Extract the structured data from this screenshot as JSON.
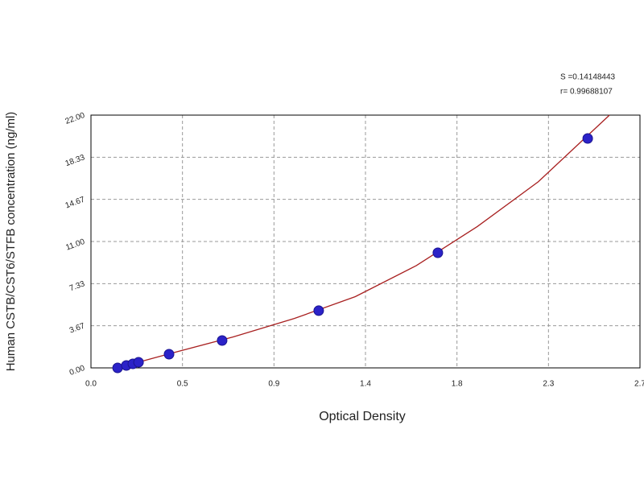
{
  "chart_data": {
    "type": "scatter",
    "x_label": "Optical Density",
    "y_label": "Human CSTB/CST6/STFB concentration (ng/ml)",
    "annotations": [
      "S =0.14148443",
      "r= 0.99688107"
    ],
    "series": [
      {
        "color": "#2b22c8",
        "x": [
          0.131,
          0.174,
          0.206,
          0.234,
          0.384,
          0.645,
          1.12,
          1.706,
          2.443
        ],
        "values": [
          0,
          0.21,
          0.35,
          0.49,
          1.19,
          2.38,
          4.98,
          10.02,
          19.97
        ]
      }
    ],
    "curve": {
      "color": "#a82020",
      "x": [
        0.13,
        0.4,
        0.7,
        1.0,
        1.3,
        1.6,
        1.9,
        2.2,
        2.55
      ],
      "values": [
        0,
        1.3,
        2.7,
        4.3,
        6.2,
        8.9,
        12.3,
        16.2,
        22.0
      ]
    },
    "xlim": [
      0,
      2.7
    ],
    "xticks": [
      {
        "value": 0,
        "label": "0.0"
      },
      {
        "value": 0.45,
        "label": "0.5"
      },
      0.9,
      {
        "value": 1.35,
        "label": "1.4"
      },
      1.8,
      {
        "value": 2.25,
        "label": "2.3"
      },
      2.7
    ],
    "ylim": [
      0,
      22
    ],
    "yticks": [
      {
        "value": 0,
        "label": "0.00"
      },
      3.67,
      7.33,
      {
        "value": 11,
        "label": "11.00"
      },
      14.67,
      18.33,
      {
        "value": 22,
        "label": "22.00"
      }
    ],
    "grid": true
  }
}
